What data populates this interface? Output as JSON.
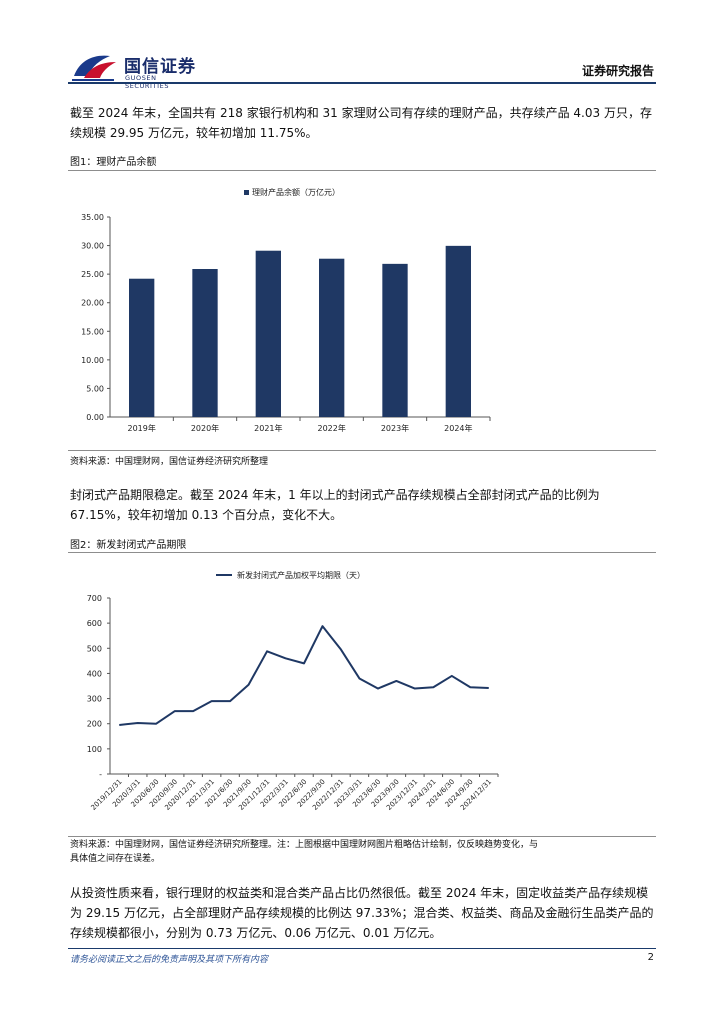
{
  "header": {
    "brand_cn": "国信证券",
    "brand_en": "GUOSEN SECURITIES",
    "report_type": "证券研究报告"
  },
  "paragraph1": "截至 2024 年末，全国共有 218 家银行机构和 31 家理财公司有存续的理财产品，共存续产品 4.03 万只，存续规模 29.95 万亿元，较年初增加 11.75%。",
  "figure1": {
    "title": "图1：理财产品余额",
    "source": "资料来源：中国理财网，国信证券经济研究所整理"
  },
  "paragraph2": "封闭式产品期限稳定。截至 2024 年末，1 年以上的封闭式产品存续规模占全部封闭式产品的比例为 67.15%，较年初增加 0.13 个百分点，变化不大。",
  "figure2": {
    "title": "图2：新发封闭式产品期限",
    "source": "资料来源：中国理财网，国信证券经济研究所整理。注：上图根据中国理财网图片粗略估计绘制，仅反映趋势变化，与具体值之间存在误差。"
  },
  "paragraph3": "从投资性质来看，银行理财的权益类和混合类产品占比仍然很低。截至 2024 年末，固定收益类产品存续规模为 29.15 万亿元，占全部理财产品存续规模的比例达 97.33%；混合类、权益类、商品及金融衍生品类产品的存续规模都很小，分别为 0.73 万亿元、0.06 万亿元、0.01 万亿元。",
  "footer": {
    "disclaimer": "请务必阅读正文之后的免责声明及其项下所有内容",
    "page": "2"
  },
  "colors": {
    "navy": "#1f3864",
    "rule": "#1a3a6b",
    "logo_red": "#c8102e"
  },
  "chart_data": [
    {
      "type": "bar",
      "categories": [
        "2019年",
        "2020年",
        "2021年",
        "2022年",
        "2023年",
        "2024年"
      ],
      "series": [
        {
          "name": "理财产品余额（万亿元）",
          "values": [
            24.2,
            25.9,
            29.1,
            27.7,
            26.8,
            29.95
          ]
        }
      ],
      "ylim": [
        0,
        35
      ],
      "yticks": [
        "0.00",
        "5.00",
        "10.00",
        "15.00",
        "20.00",
        "25.00",
        "30.00",
        "35.00"
      ],
      "legend": "top-center",
      "grid": false
    },
    {
      "type": "line",
      "categories": [
        "2019/12/31",
        "2020/3/31",
        "2020/6/30",
        "2020/9/30",
        "2020/12/31",
        "2021/3/31",
        "2021/6/30",
        "2021/9/30",
        "2021/12/31",
        "2022/3/31",
        "2022/6/30",
        "2022/9/30",
        "2022/12/31",
        "2023/3/31",
        "2023/6/30",
        "2023/9/30",
        "2023/12/31",
        "2024/3/31",
        "2024/6/30",
        "2024/9/30",
        "2024/12/31"
      ],
      "series": [
        {
          "name": "新发封闭式产品加权平均期限（天）",
          "values": [
            195,
            203,
            200,
            250,
            250,
            290,
            290,
            355,
            488,
            460,
            440,
            588,
            495,
            380,
            340,
            370,
            340,
            345,
            390,
            345,
            342
          ]
        }
      ],
      "ylim": [
        0,
        700
      ],
      "yticks": [
        "-",
        "100",
        "200",
        "300",
        "400",
        "500",
        "600",
        "700"
      ],
      "legend": "top-center",
      "grid": false
    }
  ]
}
